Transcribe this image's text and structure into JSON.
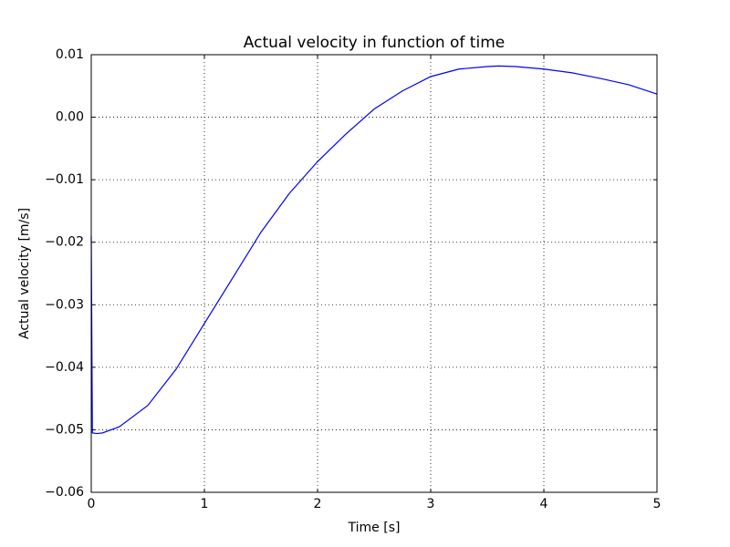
{
  "chart_data": {
    "type": "line",
    "title": "Actual velocity in function of time",
    "xlabel": "Time [s]",
    "ylabel": "Actual velocity [m/s]",
    "series": [
      {
        "color": "#0000ff",
        "x": [
          0,
          0.01,
          0.05,
          0.1,
          0.25,
          0.5,
          0.75,
          1,
          1.25,
          1.5,
          1.75,
          2,
          2.25,
          2.5,
          2.75,
          3,
          3.25,
          3.5,
          3.6,
          3.75,
          4,
          4.25,
          4.5,
          4.75,
          5
        ],
        "values": [
          -0.019,
          -0.0505,
          -0.0506,
          -0.0505,
          -0.0495,
          -0.0461,
          -0.0403,
          -0.033,
          -0.0257,
          -0.0184,
          -0.0122,
          -0.0071,
          -0.0027,
          0.0013,
          0.0042,
          0.0065,
          0.0077,
          0.0081,
          0.0082,
          0.0081,
          0.0077,
          0.0071,
          0.0062,
          0.0052,
          0.0037
        ]
      }
    ],
    "xlim": [
      0,
      5
    ],
    "xticks": [
      0,
      1,
      2,
      3,
      4,
      5
    ],
    "ylim": [
      -0.06,
      0.01
    ],
    "yticks": [
      {
        "value": -0.06,
        "label": "−0.06"
      },
      {
        "value": -0.05,
        "label": "−0.05"
      },
      {
        "value": -0.04,
        "label": "−0.04"
      },
      {
        "value": -0.03,
        "label": "−0.03"
      },
      {
        "value": -0.02,
        "label": "−0.02"
      },
      {
        "value": -0.01,
        "label": "−0.01"
      },
      {
        "value": 0,
        "label": "0.00"
      },
      0.01
    ],
    "grid": true
  }
}
